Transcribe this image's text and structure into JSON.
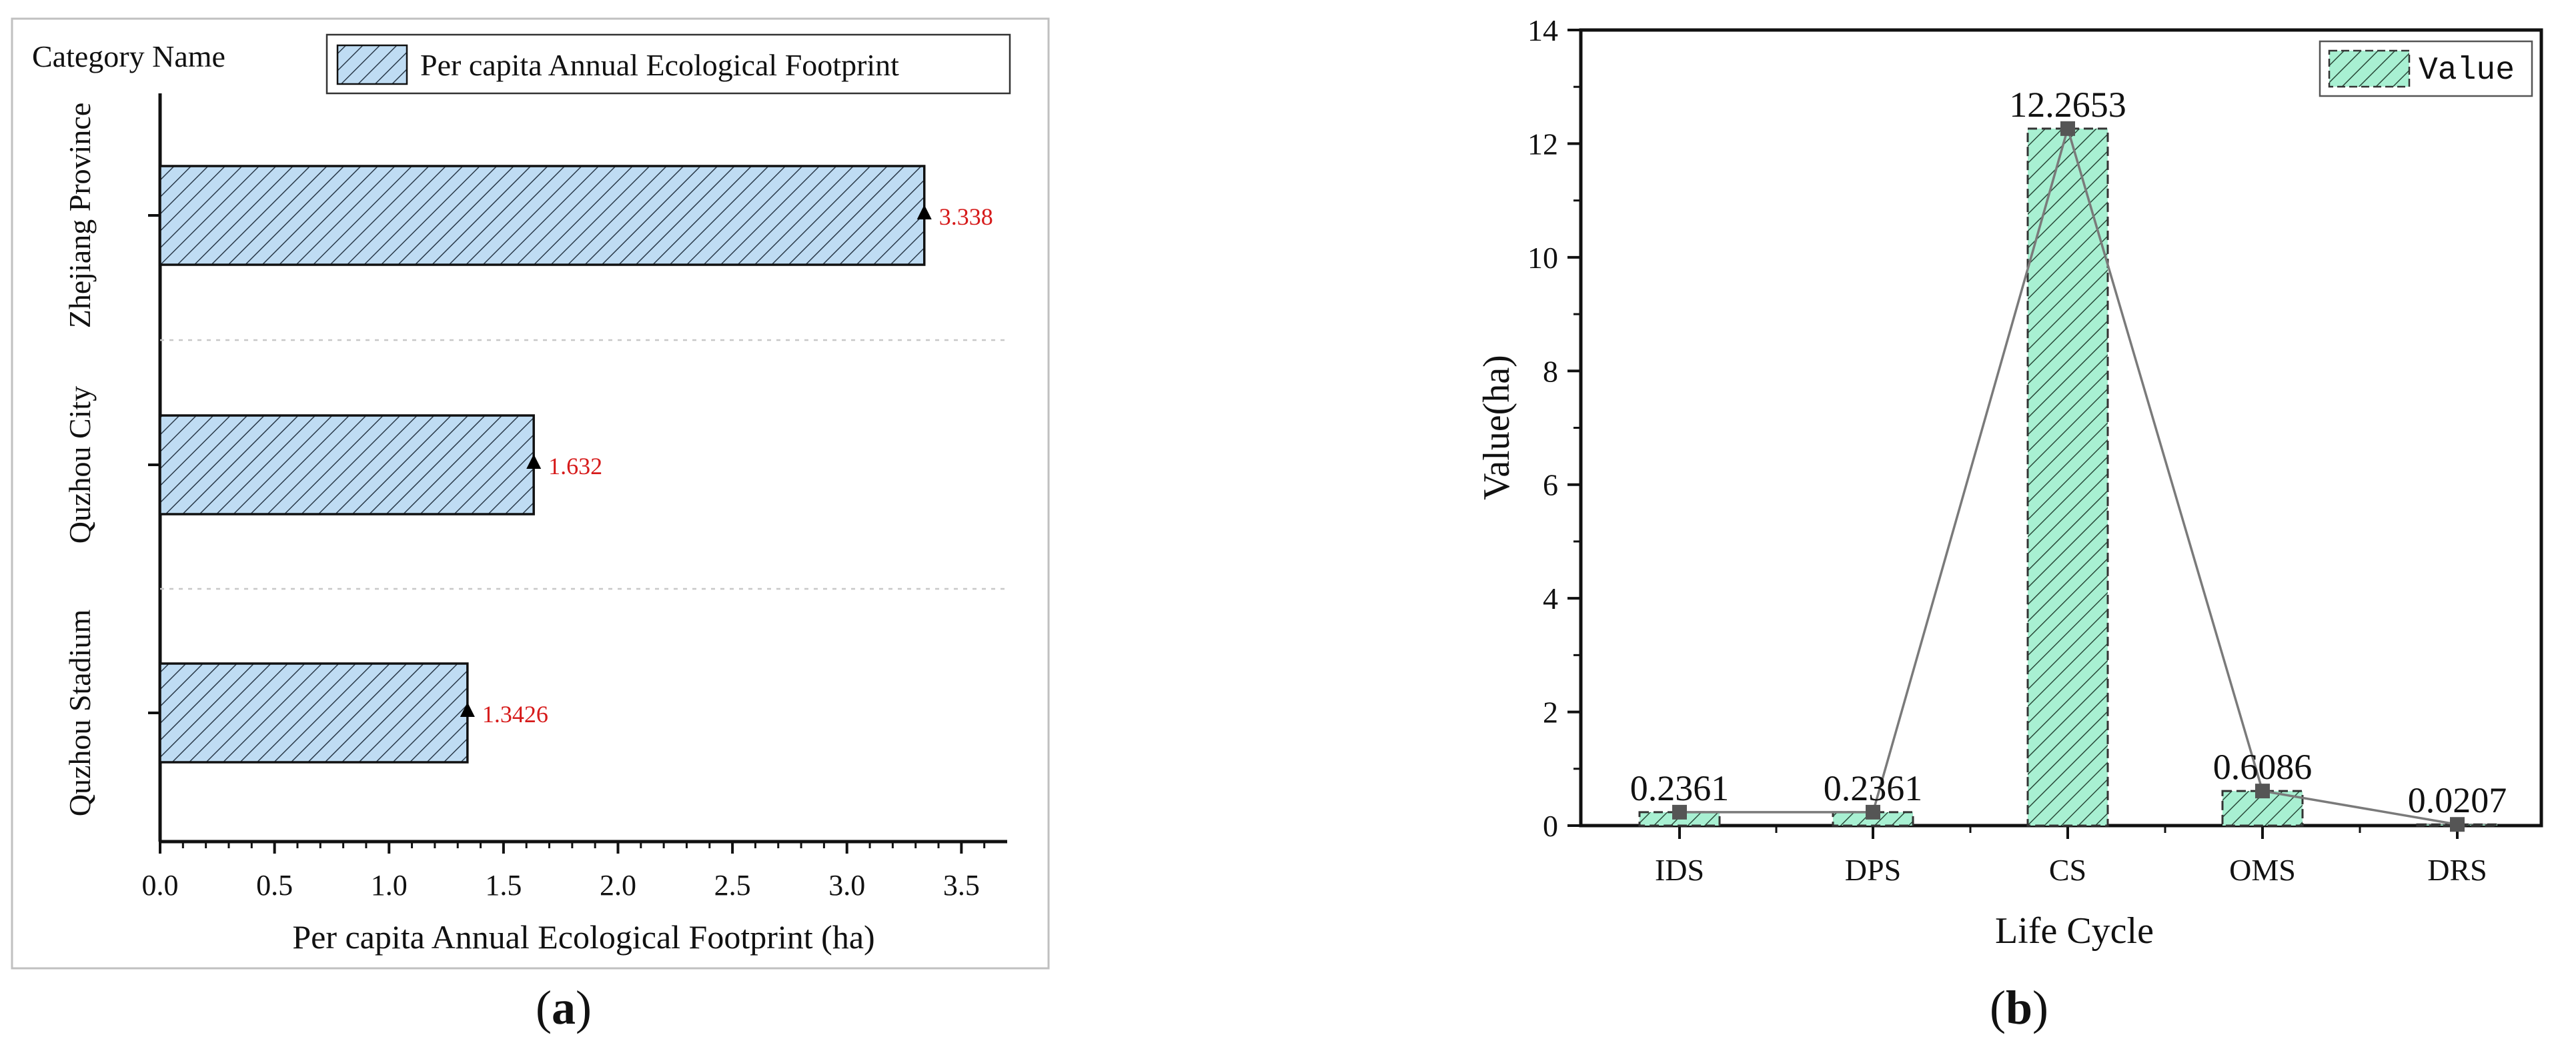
{
  "panels": {
    "a": {
      "label": "a"
    },
    "b": {
      "label": "b"
    }
  },
  "chart_data": [
    {
      "id": "a",
      "type": "bar",
      "orientation": "horizontal",
      "categories": [
        "Zhejiang Province",
        "Quzhou City",
        "Quzhou Stadium"
      ],
      "series": [
        {
          "name": "Per capita Annual Ecological Footprint",
          "values": [
            3.338,
            1.632,
            1.3426
          ],
          "labels": [
            "3.338",
            "1.632",
            "1.3426"
          ]
        }
      ],
      "title": "",
      "ylabel": "Category Name",
      "xlabel": "Per capita Annual Ecological Footprint (ha)",
      "xlim": [
        0,
        3.7
      ],
      "xticks": [
        0,
        0.5,
        1,
        1.5,
        2,
        2.5,
        3,
        3.5
      ],
      "xtick_labels": [
        "0.0",
        "0.5",
        "1.0",
        "1.5",
        "2.0",
        "2.5",
        "3.0",
        "3.5"
      ],
      "legend": "top",
      "grid": false,
      "colors": {
        "bar_fill": "#bfdcf3",
        "hatch": "#2a3a4a",
        "data_label": "#d61a1a"
      }
    },
    {
      "id": "b",
      "type": "bar",
      "overlay": "line",
      "categories": [
        "IDS",
        "DPS",
        "CS",
        "OMS",
        "DRS"
      ],
      "series": [
        {
          "name": "Value",
          "values": [
            0.2361,
            0.2361,
            12.2653,
            0.6086,
            0.0207
          ],
          "labels": [
            "0.2361",
            "0.2361",
            "12.2653",
            "0.6086",
            "0.0207"
          ]
        }
      ],
      "title": "",
      "xlabel": "Life Cycle",
      "ylabel": "Value(ha)",
      "ylim": [
        0,
        14
      ],
      "yticks": [
        0,
        2,
        4,
        6,
        8,
        10,
        12,
        14
      ],
      "ytick_labels": [
        "0",
        "2",
        "4",
        "6",
        "8",
        "10",
        "12",
        "14"
      ],
      "legend": "top-right",
      "grid": false,
      "colors": {
        "bar_fill": "#a8f0d2",
        "hatch": "#2a4a3a",
        "line": "#7a7a7a",
        "marker": "#555555"
      }
    }
  ]
}
